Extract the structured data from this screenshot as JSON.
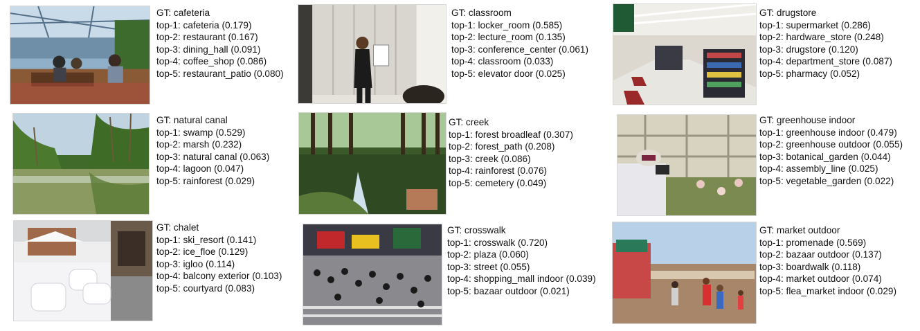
{
  "panels": [
    {
      "image": "cafeteria-photo",
      "gt": "GT: cafeteria",
      "preds": [
        "top-1: cafeteria (0.179)",
        "top-2: restaurant (0.167)",
        "top-3: dining_hall (0.091)",
        "top-4: coffee_shop (0.086)",
        "top-5: restaurant_patio (0.080)"
      ]
    },
    {
      "image": "classroom-photo",
      "gt": "GT: classroom",
      "preds": [
        "top-1: locker_room (0.585)",
        "top-2: lecture_room (0.135)",
        "top-3: conference_center (0.061)",
        "top-4: classroom (0.033)",
        "top-5: elevator door (0.025)"
      ]
    },
    {
      "image": "drugstore-photo",
      "gt": "GT: drugstore",
      "preds": [
        "top-1: supermarket (0.286)",
        "top-2: hardware_store (0.248)",
        "top-3: drugstore (0.120)",
        "top-4: department_store (0.087)",
        "top-5: pharmacy (0.052)"
      ]
    },
    {
      "image": "natural-canal-photo",
      "gt": "GT: natural canal",
      "preds": [
        "top-1: swamp (0.529)",
        "top-2: marsh (0.232)",
        "top-3: natural canal (0.063)",
        "top-4: lagoon (0.047)",
        "top-5: rainforest (0.029)"
      ]
    },
    {
      "image": "creek-photo",
      "gt": "GT: creek",
      "preds": [
        "top-1: forest broadleaf (0.307)",
        "top-2: forest_path (0.208)",
        "top-3: creek (0.086)",
        "top-4: rainforest (0.076)",
        "top-5: cemetery (0.049)"
      ]
    },
    {
      "image": "greenhouse-indoor-photo",
      "gt": "GT: greenhouse indoor",
      "preds": [
        "top-1: greenhouse indoor (0.479)",
        "top-2: greenhouse outdoor (0.055)",
        "top-3: botanical_garden (0.044)",
        "top-4: assembly_line (0.025)",
        "top-5: vegetable_garden (0.022)"
      ]
    },
    {
      "image": "chalet-photo",
      "gt": "GT: chalet",
      "preds": [
        "top-1: ski_resort (0.141)",
        "top-2: ice_floe (0.129)",
        "top-3: igloo (0.114)",
        "top-4: balcony exterior (0.103)",
        "top-5: courtyard (0.083)"
      ]
    },
    {
      "image": "crosswalk-photo",
      "gt": "GT: crosswalk",
      "preds": [
        "top-1: crosswalk (0.720)",
        "top-2: plaza (0.060)",
        "top-3: street (0.055)",
        "top-4: shopping_mall indoor (0.039)",
        "top-5: bazaar outdoor (0.021)"
      ]
    },
    {
      "image": "market-outdoor-photo",
      "gt": "GT: market outdoor",
      "preds": [
        "top-1: promenade (0.569)",
        "top-2: bazaar outdoor (0.137)",
        "top-3: boardwalk (0.118)",
        "top-4: market outdoor (0.074)",
        "top-5: flea_market indoor (0.029)"
      ]
    }
  ]
}
